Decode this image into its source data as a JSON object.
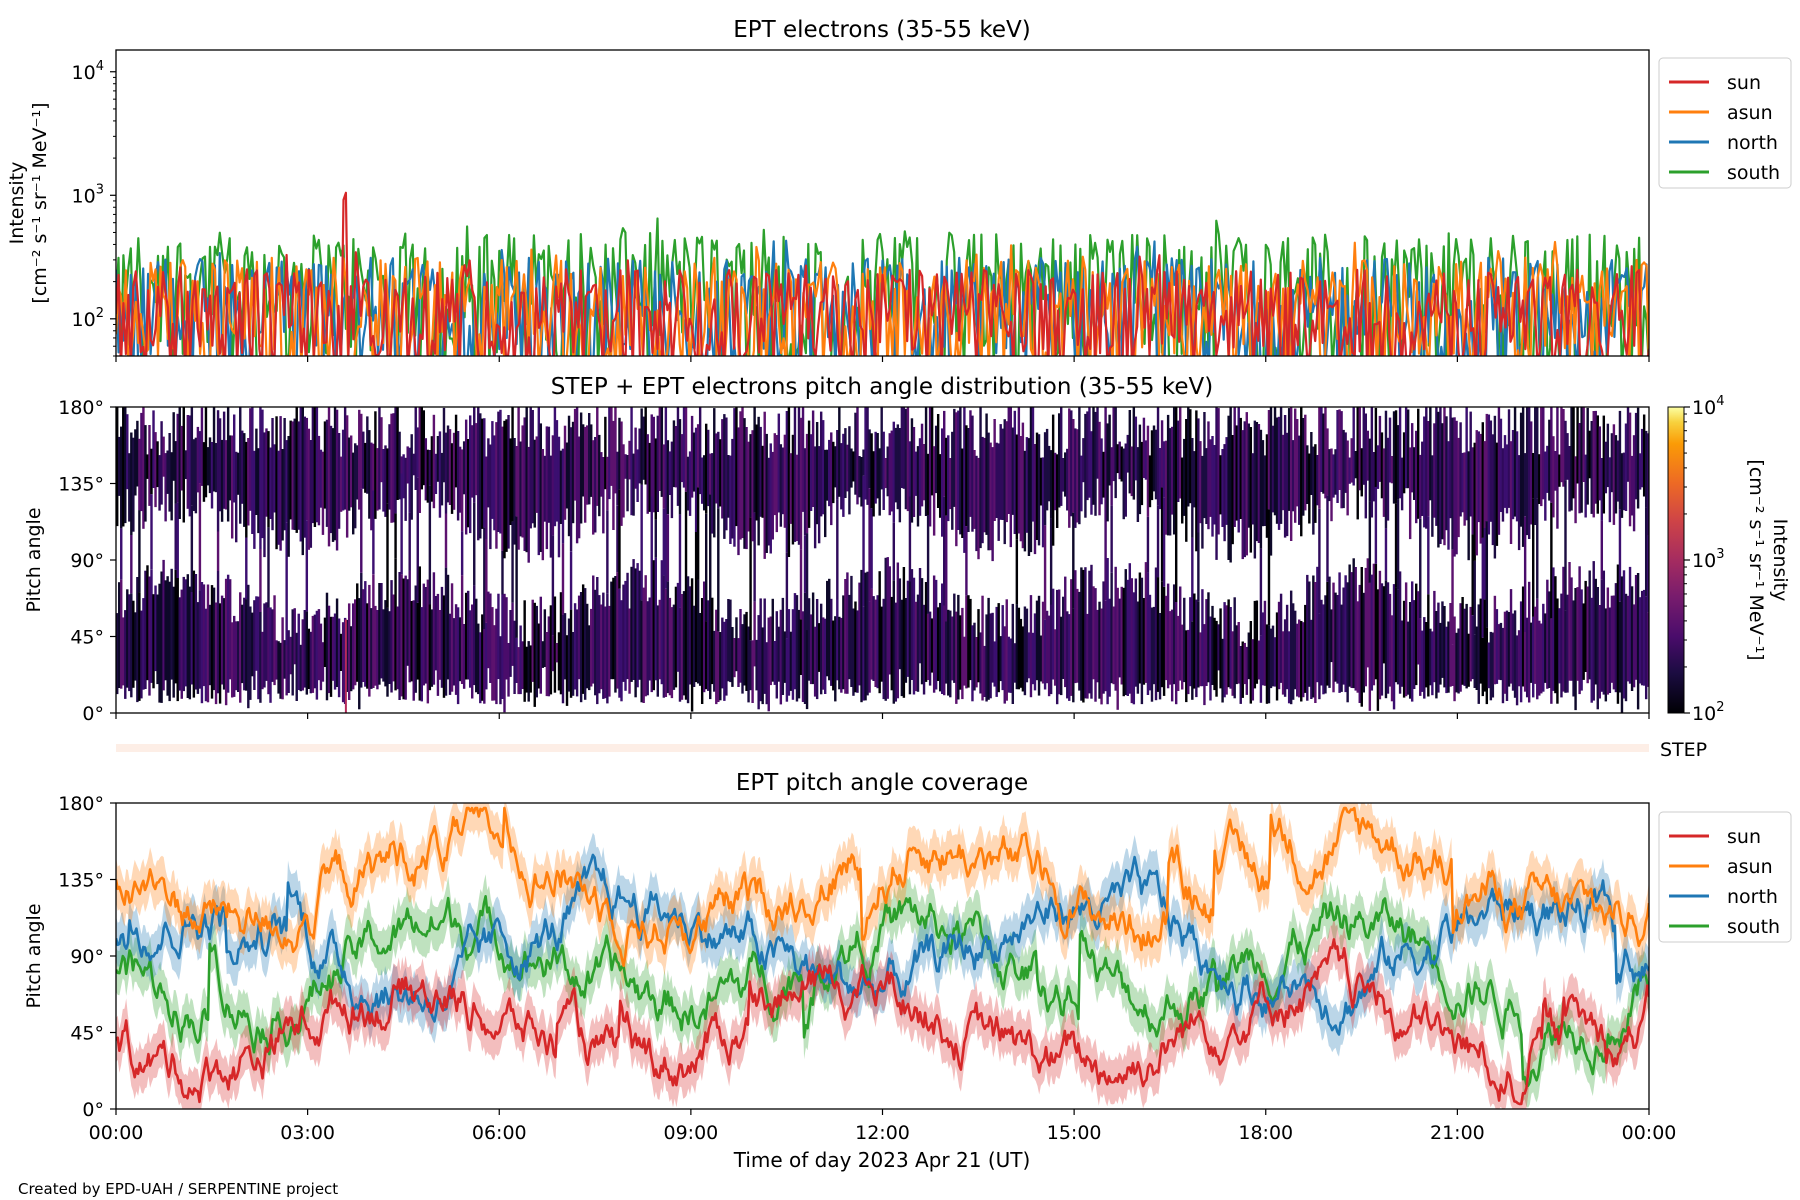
{
  "footer": {
    "credit": "Created by EPD-UAH / SERPENTINE project"
  },
  "colors": {
    "sun": "#d62728",
    "asun": "#ff7f0e",
    "north": "#1f77b4",
    "south": "#2ca02c"
  },
  "chart_data": [
    {
      "id": "ept-intensity",
      "type": "line",
      "title": "EPT electrons (35-55 keV)",
      "ylabel_line1": "Intensity",
      "ylabel_line2": "[cm⁻² s⁻¹ sr⁻¹ MeV⁻¹]",
      "yscale": "log",
      "ylim": [
        50,
        15000
      ],
      "yticks": [
        {
          "value": 100,
          "base": "10",
          "exp": "2"
        },
        {
          "value": 1000,
          "base": "10",
          "exp": "3"
        },
        {
          "value": 10000,
          "base": "10",
          "exp": "4"
        }
      ],
      "xlim_hours": [
        0,
        24
      ],
      "legend_position": "top-right-outside",
      "series": [
        {
          "name": "sun",
          "color": "#d62728",
          "typical_range": [
            50,
            320
          ],
          "peak": {
            "time": "03:35",
            "value": 1450
          }
        },
        {
          "name": "asun",
          "color": "#ff7f0e",
          "typical_range": [
            50,
            400
          ]
        },
        {
          "name": "north",
          "color": "#1f77b4",
          "typical_range": [
            50,
            400
          ]
        },
        {
          "name": "south",
          "color": "#2ca02c",
          "typical_range": [
            50,
            650
          ]
        }
      ]
    },
    {
      "id": "pitch-angle-distribution",
      "type": "heatmap",
      "title": "STEP + EPT electrons pitch angle distribution (35-55 keV)",
      "ylabel": "Pitch angle",
      "ylim": [
        0,
        180
      ],
      "yticks": [
        "0°",
        "45°",
        "90°",
        "135°",
        "180°"
      ],
      "xlim_hours": [
        0,
        24
      ],
      "colorbar": {
        "scale": "log",
        "range": [
          100,
          10000
        ],
        "colormap": "inferno",
        "label_line1": "Intensity",
        "label_line2": "[cm⁻² s⁻¹ sr⁻¹ MeV⁻¹]",
        "ticks": [
          {
            "value": 100,
            "base": "10",
            "exp": "2"
          },
          {
            "value": 1000,
            "base": "10",
            "exp": "3"
          },
          {
            "value": 10000,
            "base": "10",
            "exp": "4"
          }
        ]
      },
      "step_strip_label": "STEP"
    },
    {
      "id": "ept-pitch-coverage",
      "type": "line",
      "title": "EPT pitch angle coverage",
      "ylabel": "Pitch angle",
      "ylim": [
        0,
        180
      ],
      "yticks": [
        "0°",
        "45°",
        "90°",
        "135°",
        "180°"
      ],
      "xlabel": "Time of day 2023 Apr 21 (UT)",
      "xticks": [
        "00:00",
        "03:00",
        "06:00",
        "09:00",
        "12:00",
        "15:00",
        "18:00",
        "21:00",
        "00:00"
      ],
      "xlim_hours": [
        0,
        24
      ],
      "legend_position": "top-right-outside",
      "series": [
        {
          "name": "sun",
          "color": "#d62728",
          "typical_mean": 48
        },
        {
          "name": "asun",
          "color": "#ff7f0e",
          "typical_mean": 135
        },
        {
          "name": "north",
          "color": "#1f77b4",
          "typical_mean": 95
        },
        {
          "name": "south",
          "color": "#2ca02c",
          "typical_mean": 85
        }
      ]
    }
  ]
}
